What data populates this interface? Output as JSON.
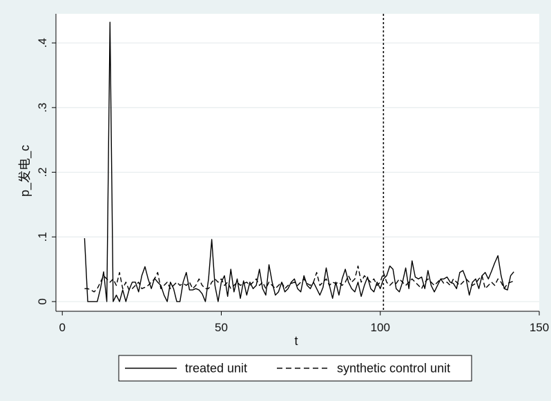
{
  "chart_data": {
    "type": "line",
    "xlabel": "t",
    "ylabel": "p_发电_c",
    "xlim": [
      -2,
      150
    ],
    "ylim": [
      -0.015,
      0.445
    ],
    "xticks": [
      0,
      50,
      100,
      150
    ],
    "yticks": [
      0,
      0.1,
      0.2,
      0.3,
      0.4
    ],
    "xtick_labels": [
      "0",
      "50",
      "100",
      "150"
    ],
    "ytick_labels": [
      "0",
      ".1",
      ".2",
      ".3",
      ".4"
    ],
    "vline": 101,
    "grid": "horizontal",
    "legend_position": "bottom",
    "colors": {
      "plot_bg": "#ffffff",
      "outer_bg": "#eaf2f3",
      "grid": "#e6ecee",
      "line": "#000000"
    },
    "series": [
      {
        "name": "treated unit",
        "style": "solid",
        "x": [
          7,
          8,
          9,
          10,
          11,
          12,
          13,
          14,
          15,
          16,
          17,
          18,
          19,
          20,
          21,
          22,
          23,
          24,
          25,
          26,
          27,
          28,
          29,
          30,
          31,
          32,
          33,
          34,
          35,
          36,
          37,
          38,
          39,
          40,
          41,
          42,
          43,
          44,
          45,
          46,
          47,
          48,
          49,
          50,
          51,
          52,
          53,
          54,
          55,
          56,
          57,
          58,
          59,
          60,
          61,
          62,
          63,
          64,
          65,
          66,
          67,
          68,
          69,
          70,
          71,
          72,
          73,
          74,
          75,
          76,
          77,
          78,
          79,
          80,
          81,
          82,
          83,
          84,
          85,
          86,
          87,
          88,
          89,
          90,
          91,
          92,
          93,
          94,
          95,
          96,
          97,
          98,
          99,
          100,
          101,
          102,
          103,
          104,
          105,
          106,
          107,
          108,
          109,
          110,
          111,
          112,
          113,
          114,
          115,
          116,
          117,
          118,
          119,
          120,
          121,
          122,
          123,
          124,
          125,
          126,
          127,
          128,
          129,
          130,
          131,
          132,
          133,
          134,
          135,
          136,
          137,
          138,
          139,
          140,
          141,
          142
        ],
        "y": [
          0.098,
          0,
          0,
          0,
          0,
          0.02,
          0.046,
          0,
          0.432,
          0,
          0.01,
          0,
          0.018,
          0,
          0.018,
          0.03,
          0.03,
          0.015,
          0.04,
          0.054,
          0.035,
          0.02,
          0.036,
          0.03,
          0.025,
          0.01,
          0,
          0.03,
          0.02,
          0,
          0,
          0.03,
          0.045,
          0.018,
          0.018,
          0.02,
          0.018,
          0.012,
          0,
          0.035,
          0.096,
          0.025,
          0,
          0.03,
          0.04,
          0.008,
          0.05,
          0.015,
          0.035,
          0.005,
          0.032,
          0.01,
          0.03,
          0.02,
          0.025,
          0.05,
          0.02,
          0.01,
          0.057,
          0.03,
          0.01,
          0.015,
          0.03,
          0.015,
          0.02,
          0.03,
          0.035,
          0.02,
          0.015,
          0.04,
          0.025,
          0.02,
          0.03,
          0.02,
          0.01,
          0.022,
          0.052,
          0.025,
          0.005,
          0.03,
          0.01,
          0.035,
          0.05,
          0.03,
          0.02,
          0.015,
          0.03,
          0.008,
          0.025,
          0.038,
          0.02,
          0.015,
          0.03,
          0.02,
          0.035,
          0.04,
          0.055,
          0.05,
          0.02,
          0.015,
          0.03,
          0.052,
          0.02,
          0.063,
          0.038,
          0.035,
          0.038,
          0.02,
          0.048,
          0.025,
          0.015,
          0.025,
          0.035,
          0.035,
          0.038,
          0.03,
          0.028,
          0.02,
          0.045,
          0.048,
          0.035,
          0.01,
          0.03,
          0.035,
          0.02,
          0.04,
          0.045,
          0.035,
          0.047,
          0.06,
          0.071,
          0.04,
          0.02,
          0.018,
          0.04,
          0.046
        ]
      },
      {
        "name": "synthetic control unit",
        "style": "dashed",
        "x": [
          7,
          8,
          9,
          10,
          11,
          12,
          13,
          14,
          15,
          16,
          17,
          18,
          19,
          20,
          21,
          22,
          23,
          24,
          25,
          26,
          27,
          28,
          29,
          30,
          31,
          32,
          33,
          34,
          35,
          36,
          37,
          38,
          39,
          40,
          41,
          42,
          43,
          44,
          45,
          46,
          47,
          48,
          49,
          50,
          51,
          52,
          53,
          54,
          55,
          56,
          57,
          58,
          59,
          60,
          61,
          62,
          63,
          64,
          65,
          66,
          67,
          68,
          69,
          70,
          71,
          72,
          73,
          74,
          75,
          76,
          77,
          78,
          79,
          80,
          81,
          82,
          83,
          84,
          85,
          86,
          87,
          88,
          89,
          90,
          91,
          92,
          93,
          94,
          95,
          96,
          97,
          98,
          99,
          100,
          101,
          102,
          103,
          104,
          105,
          106,
          107,
          108,
          109,
          110,
          111,
          112,
          113,
          114,
          115,
          116,
          117,
          118,
          119,
          120,
          121,
          122,
          123,
          124,
          125,
          126,
          127,
          128,
          129,
          130,
          131,
          132,
          133,
          134,
          135,
          136,
          137,
          138,
          139,
          140,
          141,
          142
        ],
        "y": [
          0.02,
          0.02,
          0.018,
          0.015,
          0.02,
          0.03,
          0.04,
          0.035,
          0.03,
          0.035,
          0.025,
          0.045,
          0.02,
          0.03,
          0.018,
          0.02,
          0.025,
          0.03,
          0.02,
          0.022,
          0.025,
          0.03,
          0.035,
          0.045,
          0.02,
          0.025,
          0.03,
          0.02,
          0.025,
          0.03,
          0.025,
          0.028,
          0.025,
          0.03,
          0.02,
          0.025,
          0.035,
          0.025,
          0.02,
          0.02,
          0.03,
          0.035,
          0.03,
          0.035,
          0.025,
          0.03,
          0.02,
          0.025,
          0.03,
          0.025,
          0.028,
          0.03,
          0.025,
          0.03,
          0.035,
          0.025,
          0.03,
          0.02,
          0.03,
          0.025,
          0.02,
          0.025,
          0.03,
          0.02,
          0.025,
          0.028,
          0.03,
          0.025,
          0.03,
          0.035,
          0.028,
          0.025,
          0.03,
          0.045,
          0.025,
          0.03,
          0.035,
          0.025,
          0.03,
          0.028,
          0.03,
          0.025,
          0.03,
          0.04,
          0.03,
          0.035,
          0.055,
          0.03,
          0.04,
          0.035,
          0.03,
          0.035,
          0.025,
          0.03,
          0.045,
          0.03,
          0.025,
          0.03,
          0.028,
          0.035,
          0.03,
          0.025,
          0.03,
          0.035,
          0.03,
          0.025,
          0.02,
          0.03,
          0.035,
          0.03,
          0.025,
          0.03,
          0.035,
          0.028,
          0.03,
          0.025,
          0.035,
          0.03,
          0.025,
          0.03,
          0.035,
          0.03,
          0.025,
          0.028,
          0.035,
          0.04,
          0.02,
          0.025,
          0.03,
          0.025,
          0.035,
          0.03,
          0.02,
          0.028,
          0.03,
          0.032
        ]
      }
    ]
  }
}
